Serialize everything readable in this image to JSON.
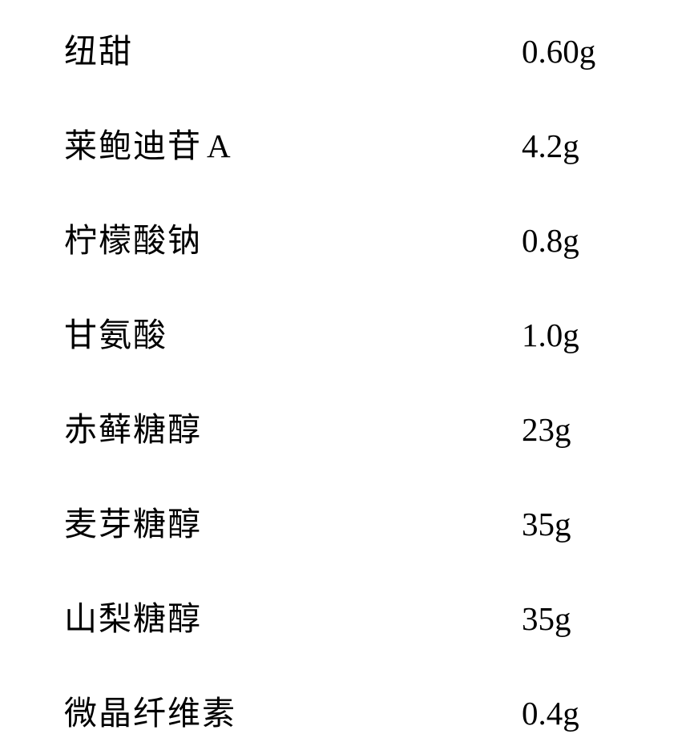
{
  "ingredients": [
    {
      "name": "纽甜",
      "value": "0.60g"
    },
    {
      "name": "莱鲍迪苷",
      "suffix": "A",
      "value": "4.2g"
    },
    {
      "name": "柠檬酸钠",
      "value": "0.8g"
    },
    {
      "name": "甘氨酸",
      "value": "1.0g"
    },
    {
      "name": "赤藓糖醇",
      "value": "23g"
    },
    {
      "name": "麦芽糖醇",
      "value": "35g"
    },
    {
      "name": "山梨糖醇",
      "value": "35g"
    },
    {
      "name": "微晶纤维素",
      "value": "0.4g"
    }
  ],
  "styling": {
    "background_color": "#ffffff",
    "text_color": "#000000",
    "name_fontsize": 41,
    "value_fontsize": 41,
    "row_gap": 58,
    "name_font": "KaiTi",
    "value_font": "Times New Roman"
  }
}
